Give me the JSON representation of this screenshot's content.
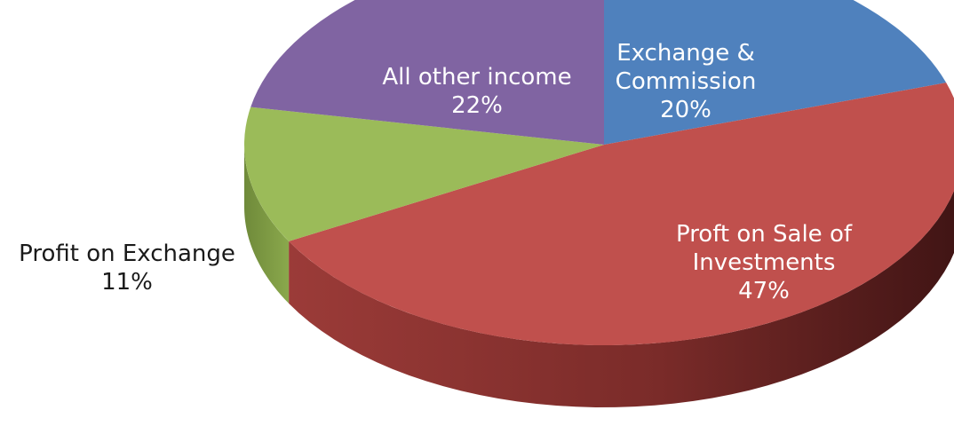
{
  "chart_data": {
    "type": "pie",
    "title": "",
    "legend": "none",
    "slices": [
      {
        "label_lines": [
          "Exchange &",
          "Commission"
        ],
        "value": 20,
        "value_label": "20%",
        "color": "#4F81BD",
        "label_color": "#FFFFFF"
      },
      {
        "label_lines": [
          "Proft on Sale of",
          "Investments"
        ],
        "value": 47,
        "value_label": "47%",
        "color": "#C0504D",
        "label_color": "#FFFFFF"
      },
      {
        "label_lines": [
          "Profit on Exchange"
        ],
        "value": 11,
        "value_label": "11%",
        "color": "#9BBB59",
        "label_color": "#1A1A1A"
      },
      {
        "label_lines": [
          "All other income"
        ],
        "value": 22,
        "value_label": "22%",
        "color": "#8064A2",
        "label_color": "#FFFFFF"
      }
    ]
  }
}
